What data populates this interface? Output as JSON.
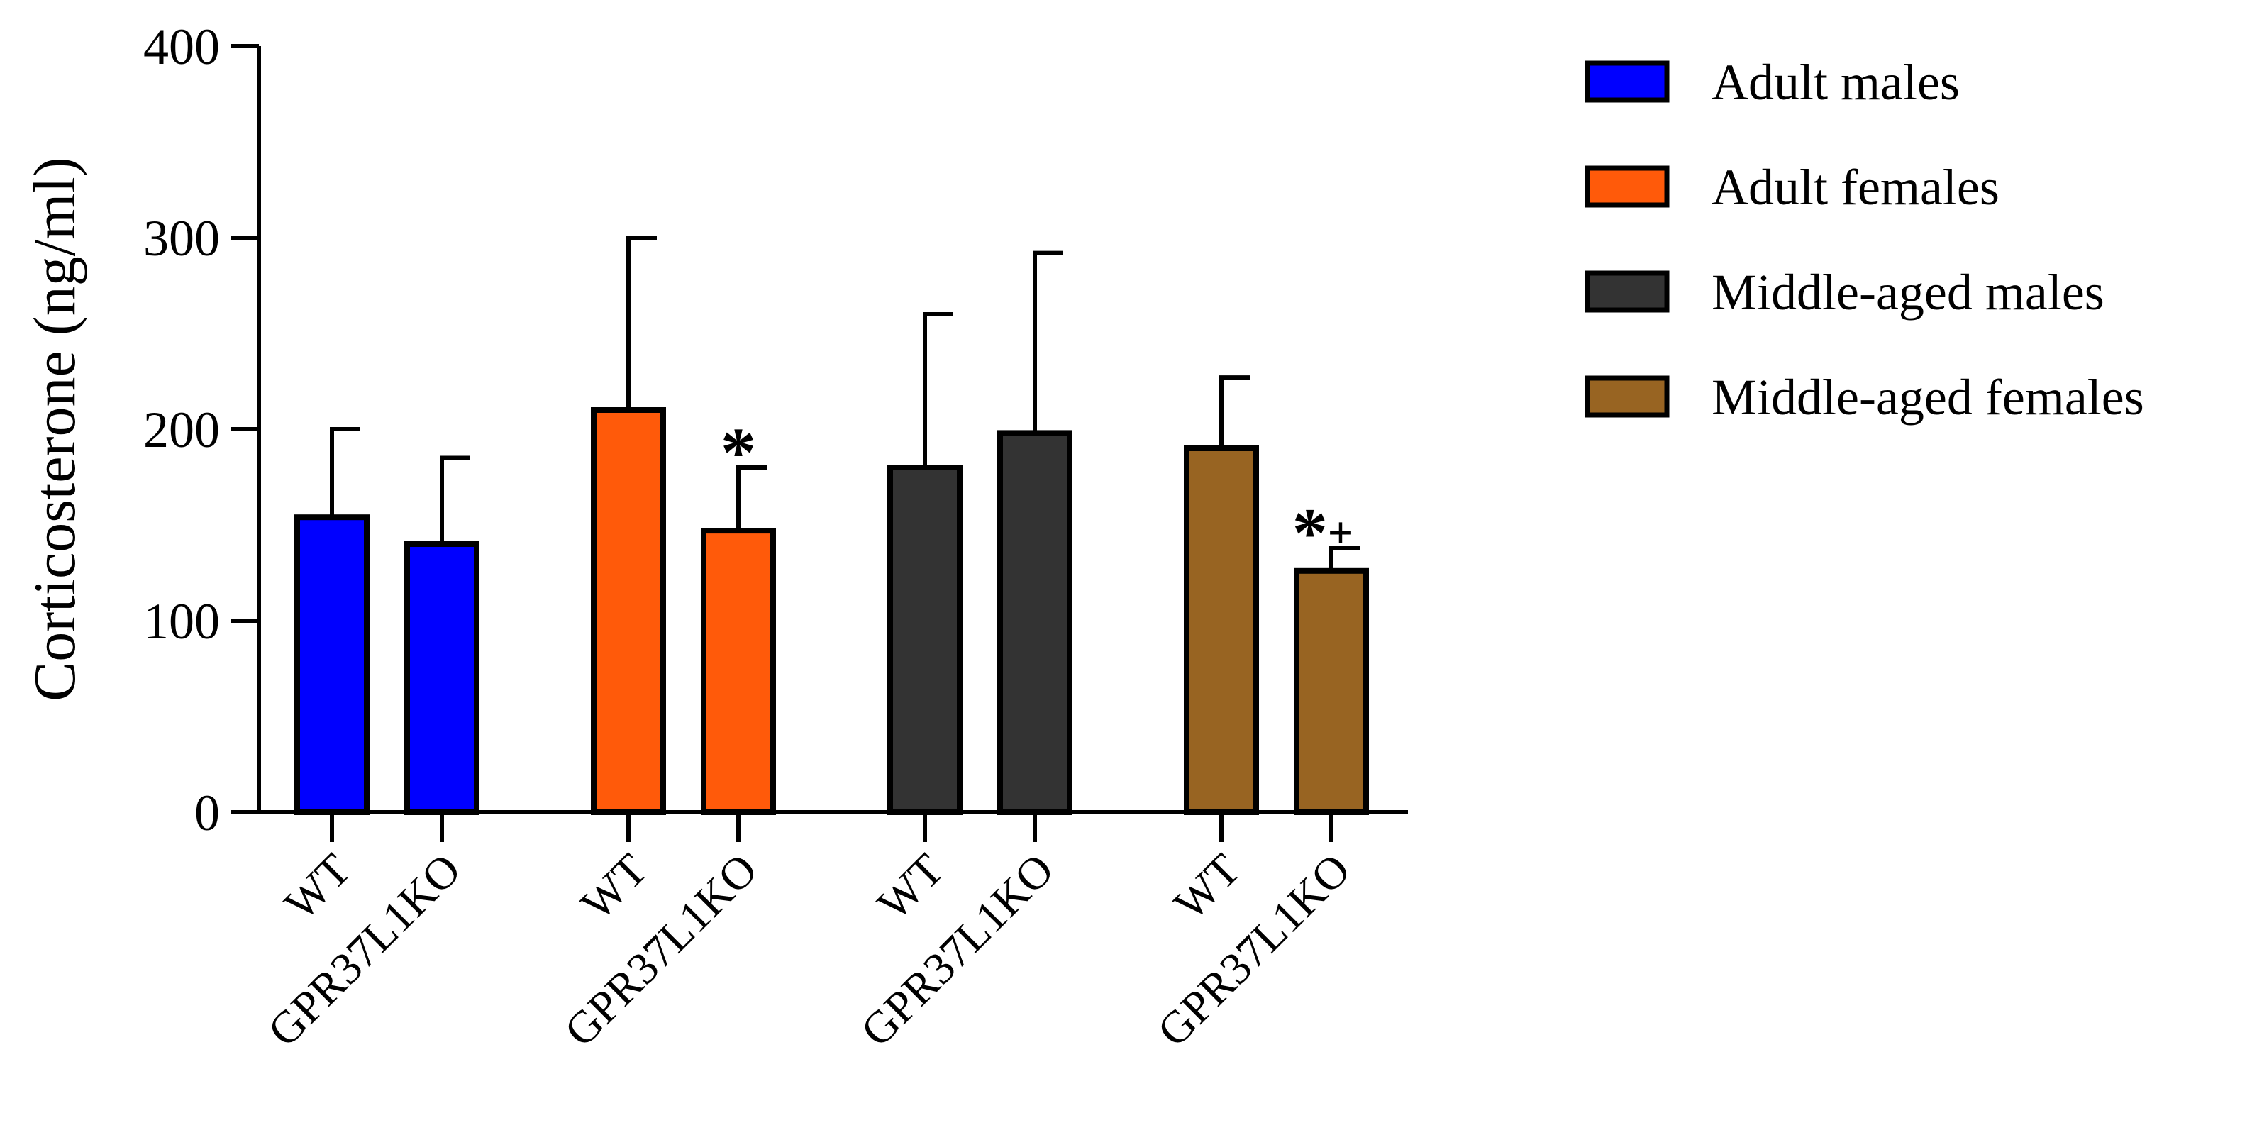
{
  "chart_data": {
    "type": "bar",
    "title": "",
    "xlabel": "",
    "ylabel": "Corticosterone (ng/ml)",
    "ylim": [
      0,
      400
    ],
    "yticks": [
      0,
      100,
      200,
      300,
      400
    ],
    "grid": false,
    "legend_position": "right",
    "groups": [
      {
        "name": "Adult males",
        "color": "#0000ff",
        "bars": [
          {
            "label": "WT",
            "value": 154,
            "error": 46,
            "annotation": ""
          },
          {
            "label": "GPR37L1KO",
            "value": 140,
            "error": 45,
            "annotation": ""
          }
        ]
      },
      {
        "name": "Adult females",
        "color": "#ff5a0a",
        "bars": [
          {
            "label": "WT",
            "value": 210,
            "error": 90,
            "annotation": ""
          },
          {
            "label": "GPR37L1KO",
            "value": 147,
            "error": 33,
            "annotation": "*"
          }
        ]
      },
      {
        "name": "Middle-aged males",
        "color": "#333333",
        "bars": [
          {
            "label": "WT",
            "value": 180,
            "error": 80,
            "annotation": ""
          },
          {
            "label": "GPR37L1KO",
            "value": 198,
            "error": 94,
            "annotation": ""
          }
        ]
      },
      {
        "name": "Middle-aged females",
        "color": "#986422",
        "bars": [
          {
            "label": "WT",
            "value": 190,
            "error": 37,
            "annotation": ""
          },
          {
            "label": "GPR37L1KO",
            "value": 126,
            "error": 12,
            "annotation": "*+"
          }
        ]
      }
    ]
  }
}
